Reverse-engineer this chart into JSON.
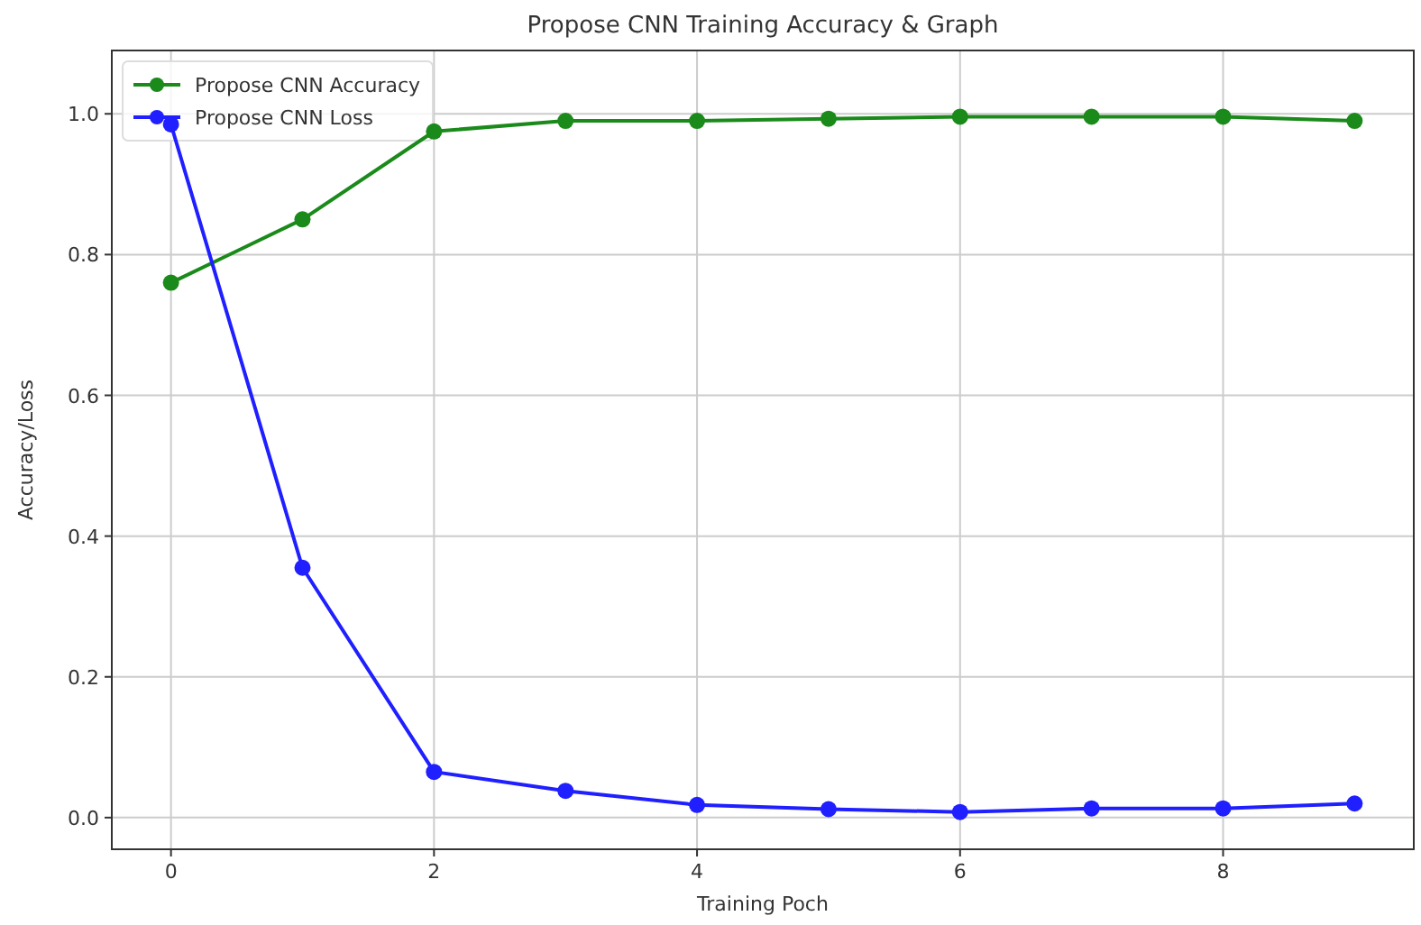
{
  "chart_data": {
    "type": "line",
    "title": "Propose CNN Training Accuracy & Graph",
    "xlabel": "Training Poch",
    "ylabel": "Accuracy/Loss",
    "x": [
      0,
      1,
      2,
      3,
      4,
      5,
      6,
      7,
      8,
      9
    ],
    "series": [
      {
        "name": "Propose CNN Accuracy",
        "color": "#1a8a1a",
        "values": [
          0.76,
          0.85,
          0.975,
          0.99,
          0.99,
          0.993,
          0.996,
          0.996,
          0.996,
          0.99
        ]
      },
      {
        "name": "Propose CNN Loss",
        "color": "#1f1fff",
        "values": [
          0.985,
          0.355,
          0.065,
          0.038,
          0.018,
          0.012,
          0.008,
          0.013,
          0.013,
          0.02
        ]
      }
    ],
    "xlim": [
      -0.45,
      9.45
    ],
    "xticks": [
      0,
      2,
      4,
      6,
      8
    ],
    "ylim": [
      -0.045,
      1.09
    ],
    "yticks": [
      {
        "value": 0,
        "label": "0.0"
      },
      {
        "value": 0.2,
        "label": "0.2"
      },
      {
        "value": 0.4,
        "label": "0.4"
      },
      {
        "value": 0.6,
        "label": "0.6"
      },
      {
        "value": 0.8,
        "label": "0.8"
      },
      {
        "value": 1,
        "label": "1.0"
      }
    ],
    "grid": true,
    "legend": "top left",
    "marker": "circle",
    "line_style": "solid"
  }
}
